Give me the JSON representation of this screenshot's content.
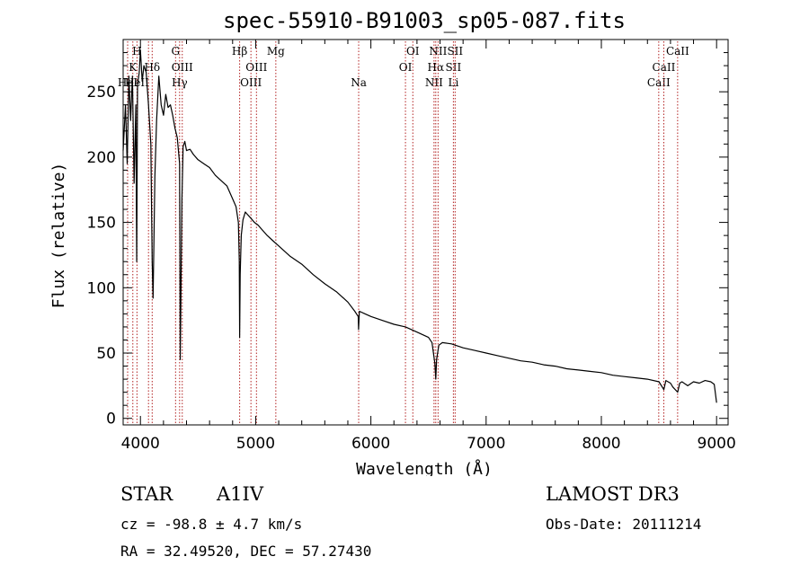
{
  "chart_data": {
    "type": "line",
    "title": "spec-55910-B91003_sp05-087.fits",
    "xlabel": "Wavelength (Å)",
    "ylabel": "Flux (relative)",
    "xlim": [
      3850,
      9100
    ],
    "ylim": [
      -5,
      290
    ],
    "xticks": [
      4000,
      5000,
      6000,
      7000,
      8000,
      9000
    ],
    "yticks": [
      0,
      50,
      100,
      150,
      200,
      250
    ],
    "grid": false,
    "series": [
      {
        "name": "spectrum",
        "x": [
          3850,
          3870,
          3885,
          3900,
          3915,
          3930,
          3945,
          3960,
          3968,
          3975,
          3990,
          4000,
          4015,
          4030,
          4050,
          4070,
          4090,
          4102,
          4110,
          4125,
          4140,
          4160,
          4180,
          4200,
          4220,
          4240,
          4260,
          4280,
          4300,
          4320,
          4340,
          4345,
          4360,
          4370,
          4385,
          4400,
          4430,
          4460,
          4500,
          4550,
          4600,
          4650,
          4700,
          4750,
          4800,
          4830,
          4850,
          4858,
          4861,
          4866,
          4875,
          4890,
          4910,
          4930,
          4960,
          4990,
          5020,
          5050,
          5100,
          5150,
          5200,
          5300,
          5400,
          5500,
          5600,
          5700,
          5800,
          5860,
          5890,
          5893,
          5900,
          5950,
          6000,
          6100,
          6200,
          6300,
          6400,
          6500,
          6530,
          6555,
          6563,
          6570,
          6590,
          6620,
          6700,
          6800,
          6900,
          7000,
          7100,
          7200,
          7300,
          7400,
          7500,
          7600,
          7700,
          7800,
          7900,
          8000,
          8100,
          8200,
          8300,
          8400,
          8500,
          8542,
          8560,
          8600,
          8620,
          8662,
          8680,
          8700,
          8750,
          8800,
          8850,
          8900,
          8950,
          8980,
          9000
        ],
        "values": [
          205,
          240,
          195,
          262,
          228,
          262,
          180,
          240,
          120,
          255,
          265,
          282,
          258,
          270,
          265,
          240,
          210,
          120,
          92,
          185,
          228,
          262,
          240,
          232,
          248,
          238,
          240,
          232,
          222,
          215,
          195,
          45,
          168,
          208,
          212,
          205,
          206,
          202,
          198,
          195,
          192,
          186,
          182,
          178,
          168,
          162,
          150,
          120,
          62,
          110,
          140,
          152,
          158,
          156,
          153,
          150,
          148,
          145,
          140,
          136,
          132,
          124,
          118,
          110,
          103,
          97,
          89,
          82,
          78,
          68,
          82,
          80,
          78,
          75,
          72,
          70,
          66,
          62,
          58,
          42,
          30,
          45,
          56,
          58,
          57,
          54,
          52,
          50,
          48,
          46,
          44,
          43,
          41,
          40,
          38,
          37,
          36,
          35,
          33,
          32,
          31,
          30,
          28,
          22,
          29,
          27,
          24,
          20,
          27,
          28,
          25,
          28,
          27,
          29,
          28,
          26,
          12
        ]
      }
    ],
    "line_markers": [
      {
        "wave": 3889,
        "rows": [
          "",
          "",
          "HeI"
        ]
      },
      {
        "wave": 3934,
        "rows": [
          "",
          "K",
          ""
        ]
      },
      {
        "wave": 3970,
        "rows": [
          "H",
          "",
          "HeII"
        ]
      },
      {
        "wave": 4070,
        "rows": [
          "",
          "",
          ""
        ]
      },
      {
        "wave": 4102,
        "rows": [
          "",
          "Hδ",
          ""
        ]
      },
      {
        "wave": 4305,
        "rows": [
          "G",
          "",
          ""
        ]
      },
      {
        "wave": 4340,
        "rows": [
          "",
          "",
          "Hγ"
        ]
      },
      {
        "wave": 4363,
        "rows": [
          "",
          "OIII",
          ""
        ]
      },
      {
        "wave": 4861,
        "rows": [
          "Hβ",
          "",
          ""
        ]
      },
      {
        "wave": 4959,
        "rows": [
          "",
          "",
          "OIII"
        ]
      },
      {
        "wave": 5007,
        "rows": [
          "",
          "OIII",
          ""
        ]
      },
      {
        "wave": 5175,
        "rows": [
          "Mg",
          "",
          ""
        ]
      },
      {
        "wave": 5894,
        "rows": [
          "",
          "",
          "Na"
        ]
      },
      {
        "wave": 6300,
        "rows": [
          "",
          "OI",
          ""
        ]
      },
      {
        "wave": 6364,
        "rows": [
          "OI",
          "",
          ""
        ]
      },
      {
        "wave": 6548,
        "rows": [
          "",
          "",
          "NII"
        ]
      },
      {
        "wave": 6563,
        "rows": [
          "",
          "Hα",
          ""
        ]
      },
      {
        "wave": 6583,
        "rows": [
          "NII",
          "",
          ""
        ]
      },
      {
        "wave": 6716,
        "rows": [
          "",
          "SII",
          "Li"
        ]
      },
      {
        "wave": 6731,
        "rows": [
          "SII",
          "",
          ""
        ]
      },
      {
        "wave": 8498,
        "rows": [
          "",
          "",
          "CaII"
        ]
      },
      {
        "wave": 8542,
        "rows": [
          "",
          "CaII",
          ""
        ]
      },
      {
        "wave": 8662,
        "rows": [
          "CaII",
          "",
          ""
        ]
      }
    ]
  },
  "info": {
    "object_class": "STAR",
    "subclass": "A1IV",
    "survey": "LAMOST DR3",
    "cz": "cz = -98.8 ± 4.7 km/s",
    "obs_date": "Obs-Date: 20111214",
    "radec": "RA =  32.49520, DEC =  57.27430"
  },
  "colors": {
    "spectrum": "#000000",
    "marker_line": "#b22222",
    "axes": "#000000"
  }
}
